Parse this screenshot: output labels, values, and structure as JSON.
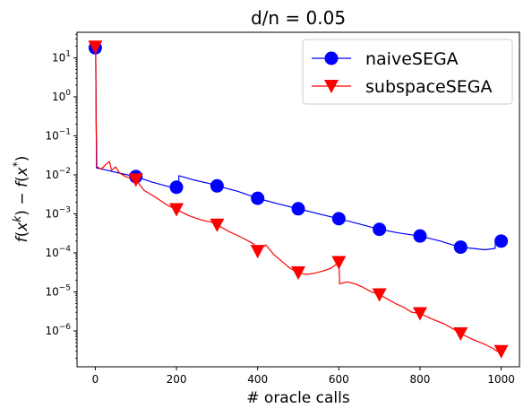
{
  "chart_data": {
    "type": "line",
    "title": "d/n = 0.05",
    "xlabel": "# oracle calls",
    "ylabel": "f(x^k) − f(x*)",
    "yscale": "log",
    "xlim": [
      -45,
      1045
    ],
    "ylim": [
      1.2e-07,
      45
    ],
    "x_ticks": [
      0,
      200,
      400,
      600,
      800,
      1000
    ],
    "y_ticks": [
      {
        "value": 10,
        "base": "10",
        "exp": "1"
      },
      {
        "value": 1,
        "base": "10",
        "exp": "0"
      },
      {
        "value": 0.1,
        "base": "10",
        "exp": "−1"
      },
      {
        "value": 0.01,
        "base": "10",
        "exp": "−2"
      },
      {
        "value": 0.001,
        "base": "10",
        "exp": "−3"
      },
      {
        "value": 0.0001,
        "base": "10",
        "exp": "−4"
      },
      {
        "value": 1e-05,
        "base": "10",
        "exp": "−5"
      },
      {
        "value": 1e-06,
        "base": "10",
        "exp": "−6"
      }
    ],
    "grid": false,
    "legend_position": "top-right",
    "series": [
      {
        "name": "naiveSEGA",
        "color": "#0000ff",
        "marker": "circle",
        "markers": {
          "x": [
            0,
            100,
            200,
            300,
            400,
            500,
            600,
            700,
            800,
            900,
            1000
          ],
          "y": [
            18,
            0.009,
            0.0048,
            0.0052,
            0.0025,
            0.00135,
            0.00075,
            0.0004,
            0.00027,
            0.00014,
            0.0002
          ]
        },
        "line": {
          "x": [
            0,
            1,
            2,
            3,
            30,
            60,
            100,
            140,
            180,
            205,
            206,
            240,
            280,
            300,
            350,
            400,
            450,
            500,
            550,
            600,
            650,
            700,
            750,
            800,
            850,
            880,
            900,
            930,
            960,
            985,
            986,
            1000
          ],
          "y": [
            18,
            18,
            0.5,
            0.015,
            0.013,
            0.011,
            0.009,
            0.0065,
            0.005,
            0.0045,
            0.0095,
            0.0075,
            0.006,
            0.0052,
            0.0038,
            0.0025,
            0.0018,
            0.00135,
            0.001,
            0.00075,
            0.00055,
            0.0004,
            0.00032,
            0.00027,
            0.0002,
            0.00016,
            0.00014,
            0.00013,
            0.00012,
            0.00013,
            0.00022,
            0.0002
          ]
        }
      },
      {
        "name": "subspaceSEGA",
        "color": "#ff0000",
        "marker": "triangle-down",
        "markers": {
          "x": [
            0,
            100,
            200,
            300,
            400,
            500,
            600,
            700,
            800,
            900,
            1000
          ],
          "y": [
            19,
            0.0075,
            0.0013,
            0.00052,
            0.00011,
            3.1e-05,
            5.7e-05,
            8.5e-06,
            2.8e-06,
            8.5e-07,
            3e-07
          ]
        },
        "line": {
          "x": [
            0,
            1,
            2,
            4,
            15,
            25,
            35,
            40,
            50,
            60,
            75,
            90,
            100,
            120,
            140,
            160,
            180,
            200,
            230,
            260,
            290,
            300,
            330,
            360,
            390,
            400,
            420,
            440,
            460,
            480,
            500,
            520,
            540,
            560,
            580,
            600,
            602,
            620,
            640,
            660,
            680,
            700,
            720,
            740,
            760,
            780,
            800,
            830,
            860,
            890,
            900,
            930,
            960,
            980,
            990,
            1000
          ],
          "y": [
            19,
            19,
            0.3,
            0.016,
            0.014,
            0.018,
            0.022,
            0.013,
            0.016,
            0.011,
            0.009,
            0.008,
            0.0075,
            0.004,
            0.003,
            0.0022,
            0.0016,
            0.0013,
            0.0009,
            0.0007,
            0.0006,
            0.00052,
            0.00035,
            0.00025,
            0.00017,
            0.00011,
            0.00016,
            9e-05,
            6e-05,
            4e-05,
            3.1e-05,
            2.8e-05,
            3e-05,
            3.4e-05,
            4e-05,
            5.7e-05,
            1.6e-05,
            1.8e-05,
            1.6e-05,
            1.3e-05,
            1e-05,
            8.5e-06,
            6.5e-06,
            5e-06,
            4e-06,
            3e-06,
            2.8e-06,
            2e-06,
            1.5e-06,
            1e-06,
            8.5e-07,
            6e-07,
            4.5e-07,
            3.5e-07,
            3e-07,
            3e-07
          ]
        }
      }
    ]
  }
}
